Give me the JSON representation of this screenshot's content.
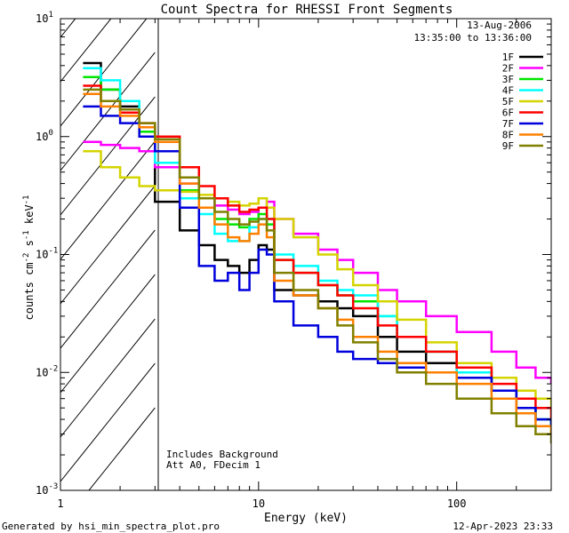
{
  "chart_data": {
    "type": "line",
    "title": "Count Spectra for RHESSI Front Segments",
    "xlabel": "Energy (keV)",
    "ylabel_parts": {
      "a": "counts cm",
      "e1": "-2",
      "b": " s",
      "e2": "-1",
      "c": " keV",
      "e3": "-1"
    },
    "xscale": "log",
    "yscale": "log",
    "xlim": [
      1,
      300
    ],
    "ylim": [
      0.001,
      10
    ],
    "x_ticks": [
      {
        "value": 1,
        "label": "1"
      },
      {
        "value": 10,
        "label": "10"
      },
      {
        "value": 100,
        "label": "100"
      }
    ],
    "y_ticks": [
      {
        "value": 0.001,
        "base": "10",
        "exp": "-3"
      },
      {
        "value": 0.01,
        "base": "10",
        "exp": "-2"
      },
      {
        "value": 0.1,
        "base": "10",
        "exp": "-1"
      },
      {
        "value": 1,
        "base": "10",
        "exp": "0"
      },
      {
        "value": 10,
        "base": "10",
        "exp": "1"
      }
    ],
    "shaded_region": {
      "x_range": [
        1,
        3
      ],
      "style": "diagonal hatch"
    },
    "annotations": {
      "date": "13-Aug-2006",
      "time_range": "13:35:00 to 13:36:00",
      "note1": "Includes Background",
      "note2": "Att A0, FDecim 1"
    },
    "legend_position": "top-right",
    "series": [
      {
        "name": "1F",
        "color": "#000000",
        "x": [
          1.3,
          1.6,
          2,
          2.5,
          3,
          4,
          5,
          6,
          7,
          8,
          9,
          10,
          11,
          12,
          15,
          20,
          25,
          30,
          40,
          50,
          70,
          100,
          150,
          200,
          250,
          300
        ],
        "y": [
          4.2,
          2.5,
          1.8,
          1.2,
          0.28,
          0.16,
          0.12,
          0.09,
          0.08,
          0.07,
          0.09,
          0.12,
          0.11,
          0.05,
          0.045,
          0.04,
          0.035,
          0.03,
          0.02,
          0.015,
          0.012,
          0.01,
          0.007,
          0.005,
          0.004,
          0.0035
        ]
      },
      {
        "name": "2F",
        "color": "#ff00ff",
        "x": [
          1.3,
          1.6,
          2,
          2.5,
          3,
          4,
          5,
          6,
          7,
          8,
          9,
          10,
          11,
          12,
          15,
          20,
          25,
          30,
          40,
          50,
          70,
          100,
          150,
          200,
          250,
          300
        ],
        "y": [
          0.9,
          0.85,
          0.8,
          0.75,
          0.55,
          0.4,
          0.3,
          0.26,
          0.24,
          0.22,
          0.23,
          0.25,
          0.28,
          0.2,
          0.15,
          0.11,
          0.09,
          0.07,
          0.05,
          0.04,
          0.03,
          0.022,
          0.015,
          0.011,
          0.009,
          0.008
        ]
      },
      {
        "name": "3F",
        "color": "#00e600",
        "x": [
          1.3,
          1.6,
          2,
          2.5,
          3,
          4,
          5,
          6,
          7,
          8,
          9,
          10,
          11,
          12,
          15,
          20,
          25,
          30,
          40,
          50,
          70,
          100,
          150,
          200,
          250,
          300
        ],
        "y": [
          3.2,
          2.5,
          1.7,
          1.1,
          0.75,
          0.35,
          0.25,
          0.2,
          0.18,
          0.17,
          0.2,
          0.22,
          0.18,
          0.09,
          0.07,
          0.055,
          0.045,
          0.04,
          0.03,
          0.02,
          0.015,
          0.01,
          0.007,
          0.005,
          0.004,
          0.003
        ]
      },
      {
        "name": "4F",
        "color": "#00ffff",
        "x": [
          1.3,
          1.6,
          2,
          2.5,
          3,
          4,
          5,
          6,
          7,
          8,
          9,
          10,
          11,
          12,
          15,
          20,
          25,
          30,
          40,
          50,
          70,
          100,
          150,
          200,
          250,
          300
        ],
        "y": [
          3.8,
          3.0,
          2.0,
          1.2,
          0.6,
          0.3,
          0.22,
          0.15,
          0.13,
          0.13,
          0.17,
          0.2,
          0.2,
          0.1,
          0.08,
          0.06,
          0.05,
          0.045,
          0.03,
          0.02,
          0.015,
          0.01,
          0.007,
          0.005,
          0.004,
          0.0035
        ]
      },
      {
        "name": "5F",
        "color": "#d4d400",
        "x": [
          1.3,
          1.6,
          2,
          2.5,
          3,
          4,
          5,
          6,
          7,
          8,
          9,
          10,
          11,
          12,
          15,
          20,
          25,
          30,
          40,
          50,
          70,
          100,
          150,
          200,
          250,
          300
        ],
        "y": [
          0.75,
          0.55,
          0.45,
          0.38,
          0.35,
          0.34,
          0.32,
          0.3,
          0.28,
          0.26,
          0.27,
          0.3,
          0.25,
          0.2,
          0.14,
          0.1,
          0.075,
          0.055,
          0.04,
          0.028,
          0.018,
          0.012,
          0.009,
          0.007,
          0.006,
          0.005
        ]
      },
      {
        "name": "6F",
        "color": "#ff0000",
        "x": [
          1.3,
          1.6,
          2,
          2.5,
          3,
          4,
          5,
          6,
          7,
          8,
          9,
          10,
          11,
          12,
          15,
          20,
          25,
          30,
          40,
          50,
          70,
          100,
          150,
          200,
          250,
          300
        ],
        "y": [
          2.7,
          2.0,
          1.6,
          1.3,
          1.0,
          0.55,
          0.38,
          0.3,
          0.26,
          0.23,
          0.24,
          0.25,
          0.2,
          0.09,
          0.07,
          0.055,
          0.045,
          0.035,
          0.025,
          0.02,
          0.015,
          0.011,
          0.008,
          0.006,
          0.005,
          0.004
        ]
      },
      {
        "name": "7F",
        "color": "#0000dd",
        "x": [
          1.3,
          1.6,
          2,
          2.5,
          3,
          4,
          5,
          6,
          7,
          8,
          9,
          10,
          11,
          12,
          15,
          20,
          25,
          30,
          40,
          50,
          70,
          100,
          150,
          200,
          250,
          300
        ],
        "y": [
          1.8,
          1.5,
          1.3,
          1.0,
          0.75,
          0.25,
          0.08,
          0.06,
          0.07,
          0.05,
          0.07,
          0.11,
          0.1,
          0.04,
          0.025,
          0.02,
          0.015,
          0.013,
          0.012,
          0.011,
          0.01,
          0.009,
          0.007,
          0.005,
          0.004,
          0.0035
        ]
      },
      {
        "name": "8F",
        "color": "#ff8000",
        "x": [
          1.3,
          1.6,
          2,
          2.5,
          3,
          4,
          5,
          6,
          7,
          8,
          9,
          10,
          11,
          12,
          15,
          20,
          25,
          30,
          40,
          50,
          70,
          100,
          150,
          200,
          250,
          300
        ],
        "y": [
          2.3,
          1.8,
          1.5,
          1.2,
          0.9,
          0.4,
          0.25,
          0.18,
          0.14,
          0.13,
          0.15,
          0.18,
          0.14,
          0.06,
          0.045,
          0.035,
          0.028,
          0.02,
          0.015,
          0.012,
          0.01,
          0.008,
          0.006,
          0.0045,
          0.0035,
          0.003
        ]
      },
      {
        "name": "9F",
        "color": "#808000",
        "x": [
          1.3,
          1.6,
          2,
          2.5,
          3,
          4,
          5,
          6,
          7,
          8,
          9,
          10,
          11,
          12,
          15,
          20,
          25,
          30,
          40,
          50,
          70,
          100,
          150,
          200,
          250,
          300
        ],
        "y": [
          2.5,
          2.0,
          1.7,
          1.3,
          0.95,
          0.45,
          0.3,
          0.23,
          0.2,
          0.18,
          0.19,
          0.2,
          0.16,
          0.07,
          0.05,
          0.035,
          0.025,
          0.018,
          0.013,
          0.01,
          0.008,
          0.006,
          0.0045,
          0.0035,
          0.003,
          0.0025
        ]
      }
    ]
  },
  "footer": {
    "generated_by": "Generated by hsi_min_spectra_plot.pro",
    "timestamp": "12-Apr-2023 23:33"
  }
}
